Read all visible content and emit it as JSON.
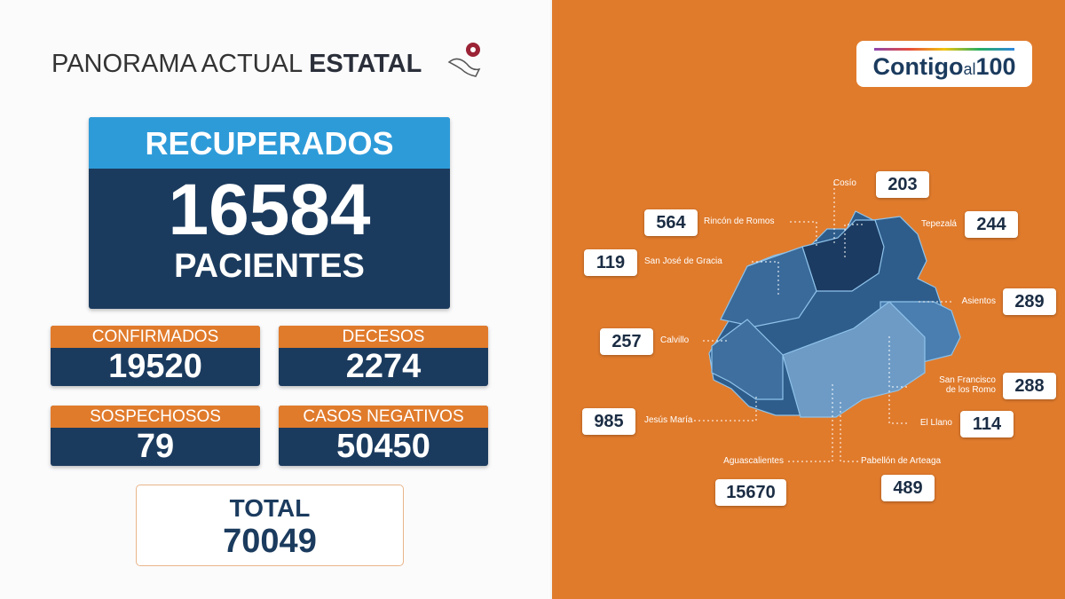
{
  "header": {
    "title_light": "PANORAMA ACTUAL",
    "title_bold": "ESTATAL"
  },
  "recovered": {
    "label": "RECUPERADOS",
    "value": 16584,
    "unit": "PACIENTES"
  },
  "stats": [
    {
      "label": "CONFIRMADOS",
      "value": 19520
    },
    {
      "label": "DECESOS",
      "value": 2274
    },
    {
      "label": "SOSPECHOSOS",
      "value": 79
    },
    {
      "label": "CASOS NEGATIVOS",
      "value": 50450
    }
  ],
  "total": {
    "label": "TOTAL",
    "value": 70049
  },
  "logo": {
    "word": "Contigo",
    "small": "al",
    "number": "100"
  },
  "municipalities": [
    {
      "name": "Cosío",
      "value": 203
    },
    {
      "name": "Rincón de Romos",
      "value": 564
    },
    {
      "name": "Tepezalá",
      "value": 244
    },
    {
      "name": "San José de Gracia",
      "value": 119
    },
    {
      "name": "Asientos",
      "value": 289
    },
    {
      "name": "Calvillo",
      "value": 257
    },
    {
      "name": "San Francisco de los Romo",
      "value": 288
    },
    {
      "name": "El Llano",
      "value": 114
    },
    {
      "name": "Jesús María",
      "value": 985
    },
    {
      "name": "Aguascalientes",
      "value": 15670
    },
    {
      "name": "Pabellón de Arteaga",
      "value": 489
    }
  ]
}
